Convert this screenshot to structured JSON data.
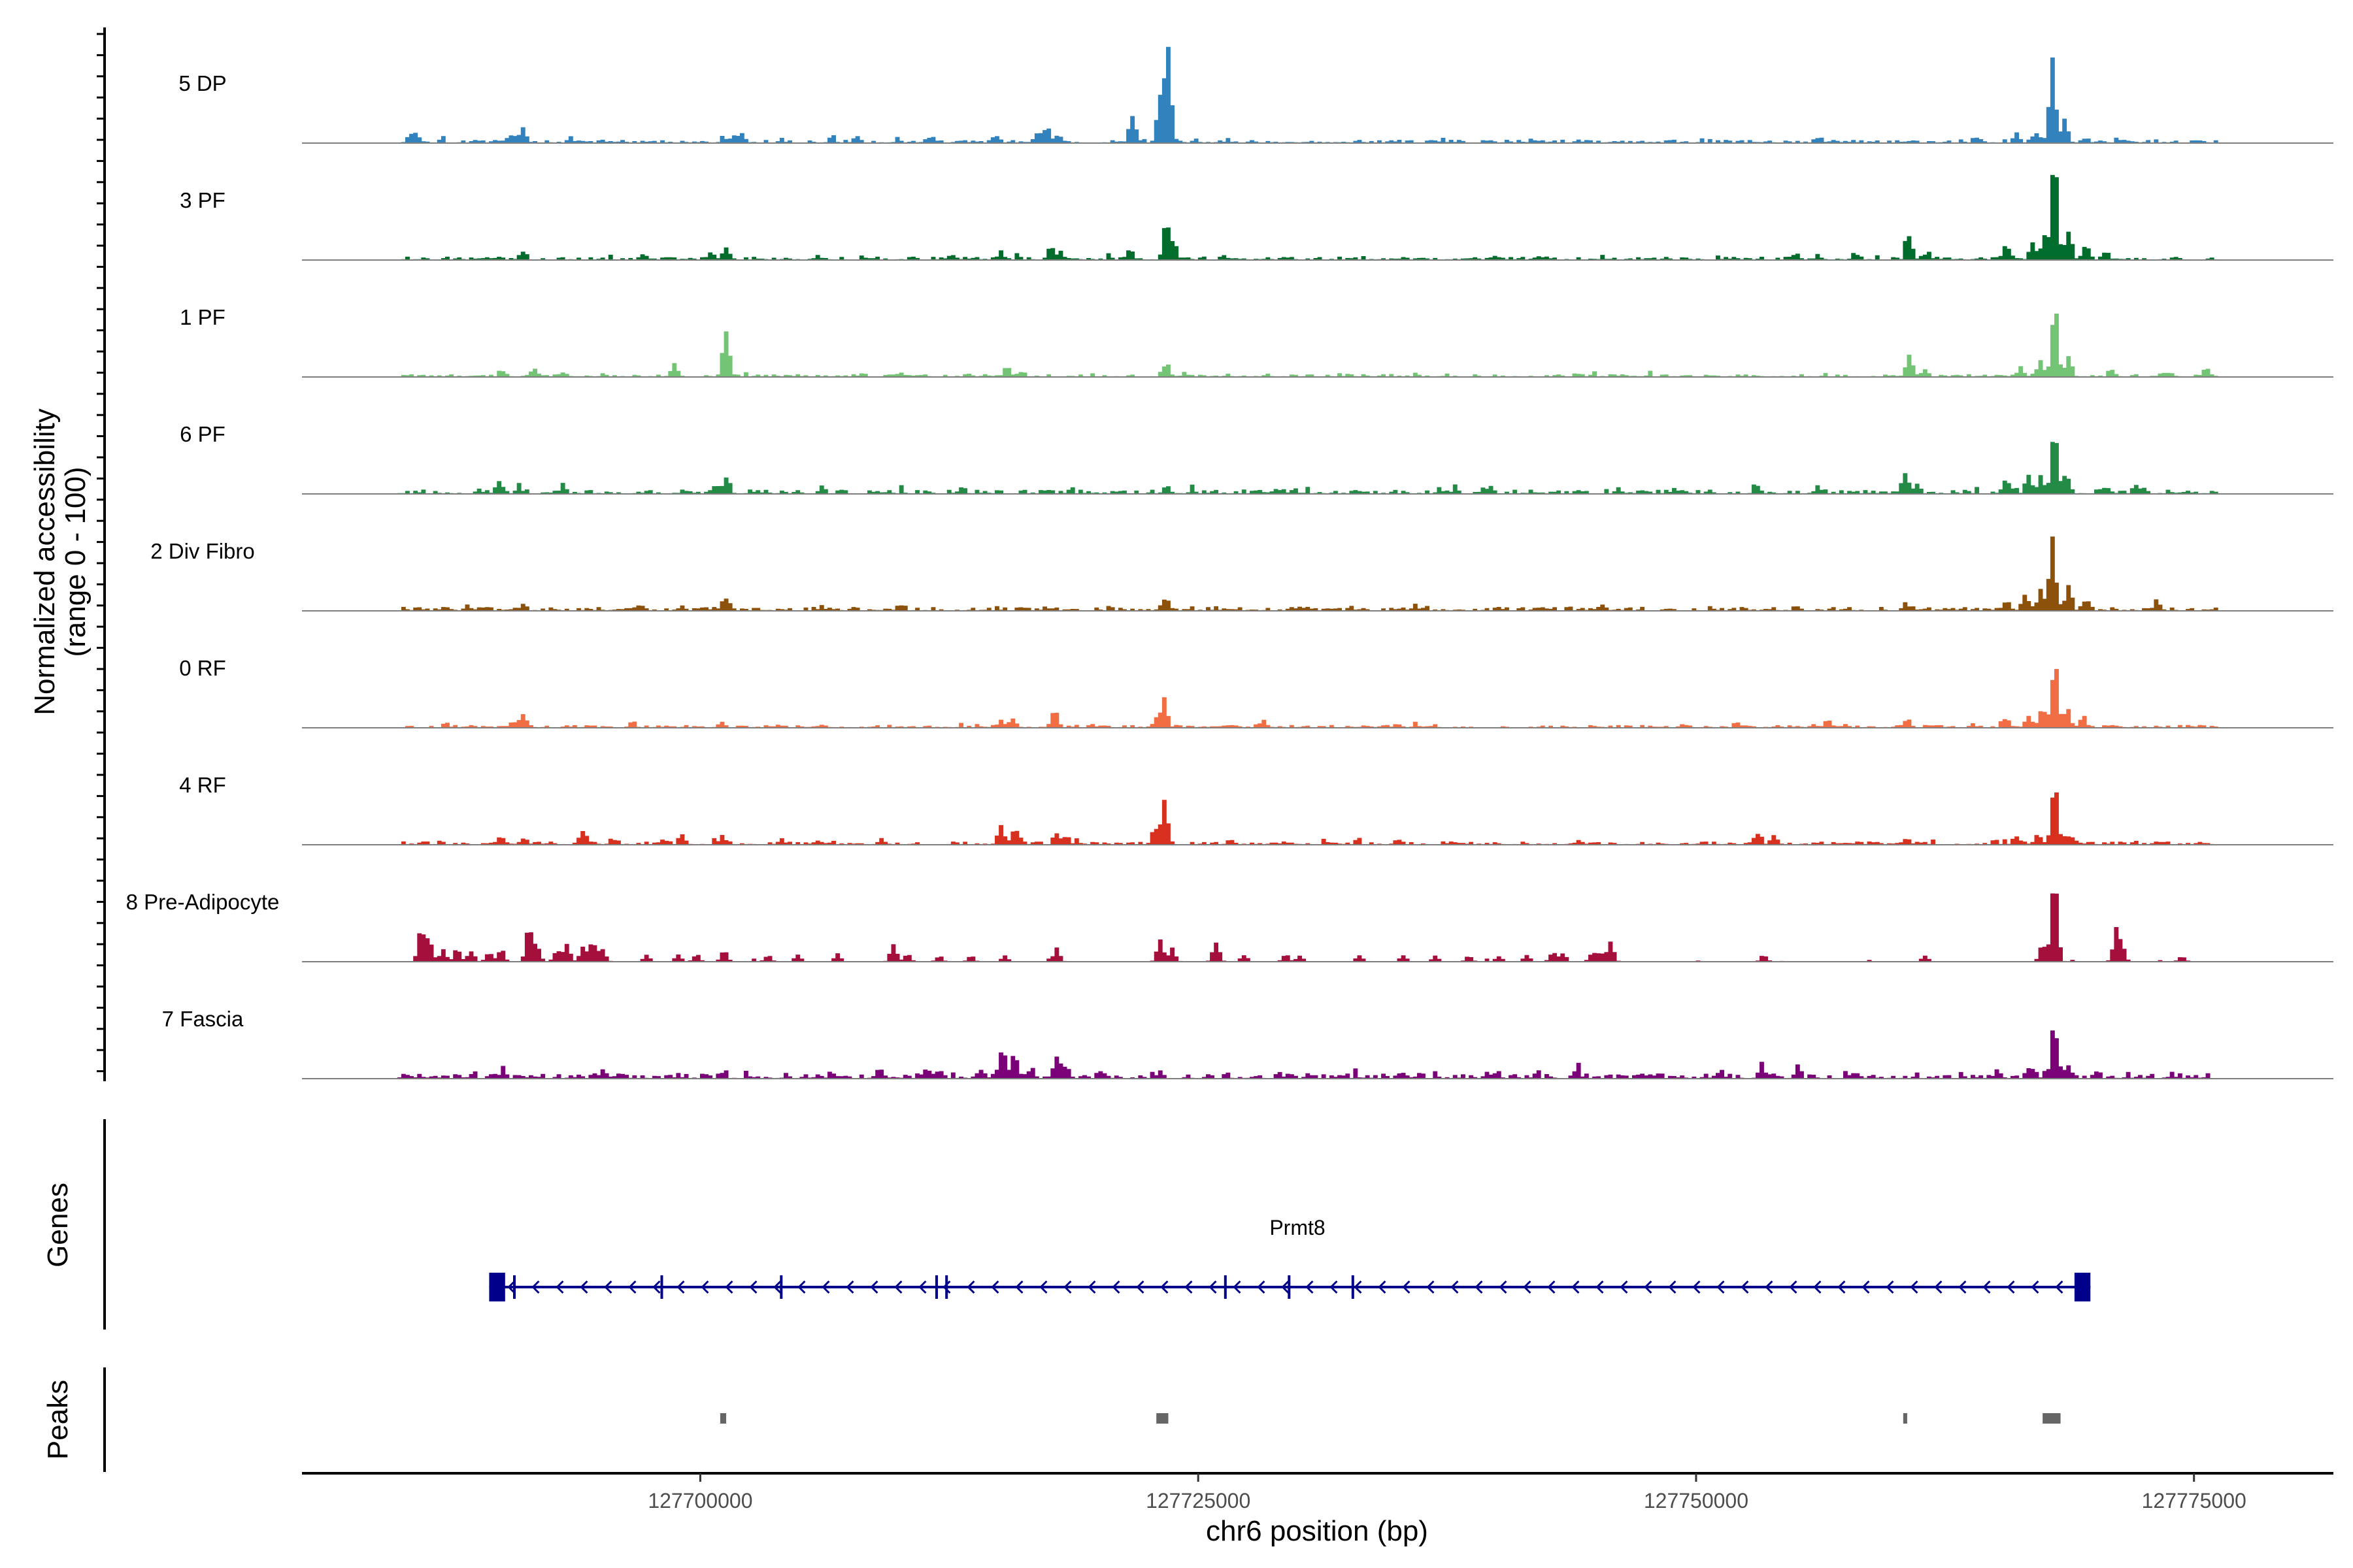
{
  "chart_data": {
    "type": "coverage",
    "ylabel_line1": "Normalized accessibility",
    "ylabel_line2": "(range 0 - 100)",
    "xlabel": "chr6 position (bp)",
    "xlim": [
      127680000,
      127782000
    ],
    "xticks": [
      127700000,
      127725000,
      127750000,
      127775000
    ],
    "xtick_labels": [
      "127700000",
      "127725000",
      "127750000",
      "127775000"
    ],
    "signal_range": [
      127684800,
      127776200
    ],
    "tracks": [
      {
        "label": "5 DP",
        "color": "#3182bd",
        "seed": 11,
        "noise": 0.03,
        "peaks": [
          [
            127685600,
            0.09
          ],
          [
            127685300,
            0.06
          ],
          [
            127691000,
            0.15
          ],
          [
            127690500,
            0.07
          ],
          [
            127702000,
            0.1
          ],
          [
            127701500,
            0.06
          ],
          [
            127706500,
            0.05
          ],
          [
            127707800,
            0.07
          ],
          [
            127711500,
            0.05
          ],
          [
            127714700,
            0.07
          ],
          [
            127716800,
            0.08
          ],
          [
            127717300,
            0.16
          ],
          [
            127717900,
            0.09
          ],
          [
            127721600,
            0.33
          ],
          [
            127723400,
            1.0
          ],
          [
            127723000,
            0.45
          ],
          [
            127744000,
            0.03
          ],
          [
            127756000,
            0.04
          ],
          [
            127764000,
            0.05
          ],
          [
            127766000,
            0.08
          ],
          [
            127767000,
            0.12
          ],
          [
            127767800,
            0.86
          ],
          [
            127768400,
            0.2
          ],
          [
            127769500,
            0.05
          ]
        ]
      },
      {
        "label": "3 PF",
        "color": "#006d2c",
        "seed": 23,
        "noise": 0.03,
        "peaks": [
          [
            127691000,
            0.09
          ],
          [
            127697000,
            0.06
          ],
          [
            127701200,
            0.12
          ],
          [
            127700500,
            0.06
          ],
          [
            127712500,
            0.05
          ],
          [
            127715000,
            0.07
          ],
          [
            127717500,
            0.14
          ],
          [
            127718000,
            0.08
          ],
          [
            127721500,
            0.1
          ],
          [
            127723300,
            0.37
          ],
          [
            127723700,
            0.15
          ],
          [
            127726200,
            0.04
          ],
          [
            127742000,
            0.04
          ],
          [
            127755000,
            0.04
          ],
          [
            127758000,
            0.05
          ],
          [
            127760600,
            0.26
          ],
          [
            127761500,
            0.08
          ],
          [
            127765500,
            0.12
          ],
          [
            127766800,
            0.18
          ],
          [
            127767400,
            0.24
          ],
          [
            127767900,
            1.0
          ],
          [
            127768600,
            0.3
          ],
          [
            127769500,
            0.14
          ],
          [
            127770500,
            0.08
          ]
        ]
      },
      {
        "label": "1 PF",
        "color": "#74c476",
        "seed": 37,
        "noise": 0.025,
        "peaks": [
          [
            127690000,
            0.06
          ],
          [
            127691500,
            0.05
          ],
          [
            127693000,
            0.04
          ],
          [
            127698600,
            0.14
          ],
          [
            127701200,
            0.48
          ],
          [
            127710000,
            0.04
          ],
          [
            127715300,
            0.11
          ],
          [
            127716000,
            0.05
          ],
          [
            127723300,
            0.13
          ],
          [
            127744000,
            0.03
          ],
          [
            127760600,
            0.26
          ],
          [
            127761400,
            0.08
          ],
          [
            127766200,
            0.1
          ],
          [
            127767200,
            0.18
          ],
          [
            127767900,
            0.77
          ],
          [
            127768600,
            0.22
          ],
          [
            127770800,
            0.06
          ],
          [
            127773500,
            0.05
          ],
          [
            127775500,
            0.08
          ]
        ]
      },
      {
        "label": "6 PF",
        "color": "#238b45",
        "seed": 41,
        "noise": 0.04,
        "peaks": [
          [
            127689800,
            0.12
          ],
          [
            127690800,
            0.08
          ],
          [
            127693000,
            0.07
          ],
          [
            127701200,
            0.2
          ],
          [
            127700600,
            0.08
          ],
          [
            127706000,
            0.04
          ],
          [
            127713000,
            0.04
          ],
          [
            127723300,
            0.08
          ],
          [
            127729000,
            0.04
          ],
          [
            127733000,
            0.03
          ],
          [
            127744000,
            0.04
          ],
          [
            127753000,
            0.07
          ],
          [
            127756000,
            0.05
          ],
          [
            127760400,
            0.24
          ],
          [
            127761000,
            0.1
          ],
          [
            127765500,
            0.15
          ],
          [
            127766600,
            0.2
          ],
          [
            127767200,
            0.16
          ],
          [
            127767900,
            0.74
          ],
          [
            127768500,
            0.2
          ],
          [
            127770500,
            0.07
          ],
          [
            127772000,
            0.05
          ]
        ]
      },
      {
        "label": "2 Div Fibro",
        "color": "#8c510a",
        "seed": 53,
        "noise": 0.035,
        "peaks": [
          [
            127691000,
            0.06
          ],
          [
            127697000,
            0.05
          ],
          [
            127699000,
            0.05
          ],
          [
            127701200,
            0.13
          ],
          [
            127706000,
            0.04
          ],
          [
            127710000,
            0.04
          ],
          [
            127716000,
            0.04
          ],
          [
            127723300,
            0.14
          ],
          [
            127730000,
            0.04
          ],
          [
            127740000,
            0.03
          ],
          [
            127745000,
            0.03
          ],
          [
            127755000,
            0.03
          ],
          [
            127760500,
            0.05
          ],
          [
            127765500,
            0.12
          ],
          [
            127766400,
            0.18
          ],
          [
            127767200,
            0.23
          ],
          [
            127767800,
            0.74
          ],
          [
            127768600,
            0.25
          ],
          [
            127769500,
            0.1
          ],
          [
            127773000,
            0.06
          ]
        ]
      },
      {
        "label": "0 RF",
        "color": "#f16d43",
        "seed": 67,
        "noise": 0.025,
        "peaks": [
          [
            127691000,
            0.16
          ],
          [
            127690500,
            0.06
          ],
          [
            127696500,
            0.05
          ],
          [
            127701000,
            0.06
          ],
          [
            127715000,
            0.07
          ],
          [
            127715600,
            0.1
          ],
          [
            127717700,
            0.18
          ],
          [
            127723200,
            0.28
          ],
          [
            127722800,
            0.1
          ],
          [
            127728000,
            0.04
          ],
          [
            127735000,
            0.03
          ],
          [
            127752000,
            0.05
          ],
          [
            127756500,
            0.06
          ],
          [
            127760500,
            0.09
          ],
          [
            127765500,
            0.1
          ],
          [
            127766600,
            0.14
          ],
          [
            127767300,
            0.2
          ],
          [
            127767900,
            0.7
          ],
          [
            127768500,
            0.2
          ],
          [
            127769300,
            0.1
          ]
        ]
      },
      {
        "label": "4 RF",
        "color": "#d7301f",
        "seed": 79,
        "noise": 0.03,
        "peaks": [
          [
            127689800,
            0.07
          ],
          [
            127691000,
            0.05
          ],
          [
            127694000,
            0.14
          ],
          [
            127695500,
            0.06
          ],
          [
            127698000,
            0.05
          ],
          [
            127699000,
            0.07
          ],
          [
            127701000,
            0.08
          ],
          [
            127704000,
            0.05
          ],
          [
            127709000,
            0.05
          ],
          [
            127715000,
            0.2
          ],
          [
            127715700,
            0.18
          ],
          [
            127717800,
            0.1
          ],
          [
            127718300,
            0.08
          ],
          [
            127723200,
            0.47
          ],
          [
            127722700,
            0.12
          ],
          [
            127726500,
            0.05
          ],
          [
            127735000,
            0.04
          ],
          [
            127744000,
            0.04
          ],
          [
            127753000,
            0.13
          ],
          [
            127753800,
            0.08
          ],
          [
            127760500,
            0.05
          ],
          [
            127766000,
            0.08
          ],
          [
            127767100,
            0.1
          ],
          [
            127767900,
            0.67
          ],
          [
            127768700,
            0.1
          ]
        ]
      },
      {
        "label": "8 Pre-Adipocyte",
        "color": "#a50f3c",
        "seed": 83,
        "noise": 0.015,
        "sparse": true,
        "peaks": [
          [
            127685900,
            0.35
          ],
          [
            127686300,
            0.25
          ],
          [
            127687000,
            0.12
          ],
          [
            127687700,
            0.14
          ],
          [
            127688400,
            0.12
          ],
          [
            127689300,
            0.1
          ],
          [
            127689900,
            0.14
          ],
          [
            127691300,
            0.36
          ],
          [
            127691700,
            0.18
          ],
          [
            127692700,
            0.12
          ],
          [
            127693200,
            0.18
          ],
          [
            127694000,
            0.16
          ],
          [
            127694500,
            0.2
          ],
          [
            127695000,
            0.14
          ],
          [
            127697200,
            0.07
          ],
          [
            127698800,
            0.08
          ],
          [
            127699700,
            0.08
          ],
          [
            127701100,
            0.12
          ],
          [
            127703300,
            0.07
          ],
          [
            127704800,
            0.08
          ],
          [
            127706800,
            0.08
          ],
          [
            127709600,
            0.18
          ],
          [
            127710300,
            0.08
          ],
          [
            127711900,
            0.06
          ],
          [
            127713500,
            0.06
          ],
          [
            127715200,
            0.06
          ],
          [
            127717800,
            0.14
          ],
          [
            127723000,
            0.22
          ],
          [
            127723600,
            0.14
          ],
          [
            127725800,
            0.22
          ],
          [
            127727200,
            0.08
          ],
          [
            127729300,
            0.08
          ],
          [
            127730000,
            0.07
          ],
          [
            127733000,
            0.07
          ],
          [
            127735200,
            0.07
          ],
          [
            127736800,
            0.06
          ],
          [
            127738500,
            0.06
          ],
          [
            127740000,
            0.06
          ],
          [
            127741400,
            0.07
          ],
          [
            127742700,
            0.1
          ],
          [
            127743200,
            0.1
          ],
          [
            127744700,
            0.1
          ],
          [
            127745100,
            0.1
          ],
          [
            127745600,
            0.22
          ],
          [
            127753300,
            0.07
          ],
          [
            127761400,
            0.07
          ],
          [
            127767300,
            0.18
          ],
          [
            127767900,
            0.99
          ],
          [
            127771000,
            0.34
          ],
          [
            127771300,
            0.14
          ],
          [
            127774300,
            0.06
          ]
        ]
      },
      {
        "label": "7 Fascia",
        "color": "#7a0177",
        "seed": 97,
        "noise": 0.05,
        "peaks": [
          [
            127690000,
            0.06
          ],
          [
            127695000,
            0.06
          ],
          [
            127701000,
            0.07
          ],
          [
            127706500,
            0.05
          ],
          [
            127709000,
            0.08
          ],
          [
            127711200,
            0.09
          ],
          [
            127712000,
            0.06
          ],
          [
            127714000,
            0.07
          ],
          [
            127715100,
            0.3
          ],
          [
            127715700,
            0.24
          ],
          [
            127716500,
            0.1
          ],
          [
            127717800,
            0.2
          ],
          [
            127718300,
            0.12
          ],
          [
            127720000,
            0.07
          ],
          [
            127723000,
            0.07
          ],
          [
            127729000,
            0.05
          ],
          [
            127735000,
            0.05
          ],
          [
            127744000,
            0.05
          ],
          [
            127753200,
            0.14
          ],
          [
            127755000,
            0.07
          ],
          [
            127758000,
            0.05
          ],
          [
            127765000,
            0.07
          ],
          [
            127766800,
            0.1
          ],
          [
            127767900,
            0.6
          ],
          [
            127768600,
            0.12
          ],
          [
            127770000,
            0.06
          ]
        ]
      }
    ],
    "gene": {
      "name": "Prmt8",
      "start": 127689400,
      "end": 127769800,
      "strand": "-",
      "color": "#00008b",
      "exons": [
        [
          127689400,
          127690200
        ],
        [
          127690600,
          127690700
        ],
        [
          127698000,
          127698080
        ],
        [
          127704000,
          127704080
        ],
        [
          127711800,
          127711900
        ],
        [
          127712300,
          127712400
        ],
        [
          127726300,
          127726380
        ],
        [
          127729500,
          127729580
        ],
        [
          127732700,
          127732800
        ],
        [
          127769000,
          127769800
        ]
      ]
    },
    "genes_label": "Genes",
    "peaks_label": "Peaks",
    "peaks": [
      [
        127701000,
        127701300
      ],
      [
        127722900,
        127723500
      ],
      [
        127760400,
        127760600
      ],
      [
        127767400,
        127768300
      ]
    ],
    "peaks_color": "#666666"
  }
}
